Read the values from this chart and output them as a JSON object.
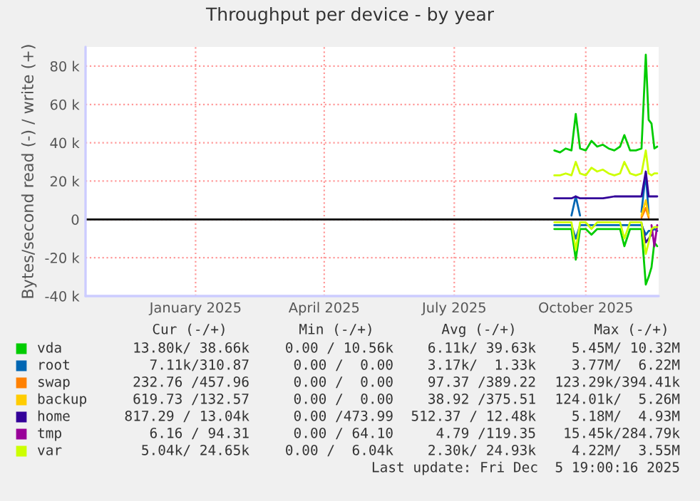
{
  "chart_data": {
    "type": "line",
    "title": "Throughput per device - by year",
    "ylabel": "Bytes/second read (-) / write (+)",
    "x": [
      "2025-09-24",
      "2025-09-28",
      "2025-10-02",
      "2025-10-06",
      "2025-10-09",
      "2025-10-12",
      "2025-10-16",
      "2025-10-20",
      "2025-10-24",
      "2025-10-28",
      "2025-11-01",
      "2025-11-05",
      "2025-11-09",
      "2025-11-12",
      "2025-11-16",
      "2025-11-20",
      "2025-11-24",
      "2025-11-27",
      "2025-11-29",
      "2025-12-01",
      "2025-12-03",
      "2025-12-05"
    ],
    "xlim": [
      "2024-10-31",
      "2025-12-06"
    ],
    "xticks": [
      {
        "value": "2025-01-16",
        "label": "January 2025"
      },
      {
        "value": "2025-04-16",
        "label": "April 2025"
      },
      {
        "value": "2025-07-16",
        "label": "July 2025"
      },
      {
        "value": "2025-10-16",
        "label": "October 2025"
      }
    ],
    "ylim": [
      -40000,
      90000
    ],
    "yticks": [
      {
        "value": -40000,
        "label": "-40 k"
      },
      {
        "value": -20000,
        "label": "-20 k"
      },
      0,
      {
        "value": 20000,
        "label": "20 k"
      },
      {
        "value": 40000,
        "label": "40 k"
      },
      {
        "value": 60000,
        "label": "60 k"
      },
      {
        "value": 80000,
        "label": "80 k"
      }
    ],
    "grid": true,
    "legend": "bottom",
    "line_style": "solid",
    "ref_lines": [
      {
        "axis": "y",
        "value": 0,
        "color": "#000000"
      }
    ],
    "series": [
      {
        "name": "vda",
        "color": "#00cc00",
        "values": [
          36000,
          35000,
          37000,
          36000,
          55000,
          37000,
          36000,
          41000,
          38000,
          39000,
          37000,
          36000,
          38000,
          44000,
          36000,
          36000,
          37000,
          86000,
          52000,
          50000,
          37000,
          38000
        ]
      },
      {
        "color": "#00cc00",
        "values": [
          -5000,
          -5000,
          -5000,
          -5000,
          -21000,
          -5000,
          -5000,
          -8000,
          -5000,
          -5000,
          -5000,
          -5000,
          -5000,
          -14000,
          -5000,
          -5000,
          -5000,
          -34000,
          -30000,
          -25000,
          -12000,
          -14000
        ]
      },
      {
        "name": "root",
        "color": "#0066b3",
        "values": [
          null,
          null,
          null,
          2000,
          12000,
          2000,
          null,
          null,
          null,
          null,
          null,
          null,
          null,
          null,
          null,
          null,
          4000,
          24000,
          3000,
          null,
          null,
          null
        ]
      },
      {
        "color": "#0066b3",
        "values": [
          -3000,
          -3000,
          -3000,
          -3000,
          -10000,
          -3000,
          -3000,
          -3000,
          -3000,
          -3000,
          -3000,
          -3000,
          -3000,
          -3000,
          -3000,
          -3000,
          -3000,
          -8000,
          -6000,
          -6000,
          -5000,
          -6000
        ]
      },
      {
        "name": "swap",
        "color": "#ff8000",
        "values": [
          null,
          null,
          null,
          null,
          null,
          null,
          null,
          null,
          null,
          null,
          null,
          null,
          null,
          null,
          null,
          null,
          1000,
          6000,
          1000,
          null,
          null,
          null
        ]
      },
      {
        "name": "backup",
        "color": "#ffcc00",
        "values": [
          null,
          null,
          null,
          null,
          null,
          null,
          null,
          null,
          null,
          null,
          null,
          null,
          null,
          null,
          null,
          null,
          2000,
          10000,
          2000,
          null,
          null,
          null
        ]
      },
      {
        "name": "home",
        "color": "#330099",
        "values": [
          11000,
          11000,
          11000,
          11000,
          12000,
          11000,
          11000,
          11000,
          11000,
          11000,
          11500,
          12000,
          12000,
          12000,
          12000,
          12000,
          12000,
          25000,
          12000,
          12000,
          12000,
          12000
        ]
      },
      {
        "color": "#330099",
        "values": [
          null,
          null,
          null,
          null,
          null,
          null,
          null,
          null,
          null,
          null,
          null,
          null,
          null,
          null,
          null,
          null,
          -2000,
          -12000,
          -10000,
          -8000,
          null,
          null
        ]
      },
      {
        "name": "tmp",
        "color": "#990099",
        "values": [
          null,
          null,
          null,
          null,
          null,
          null,
          null,
          null,
          null,
          null,
          null,
          null,
          null,
          null,
          null,
          null,
          null,
          null,
          null,
          -3000,
          -14000,
          -3000
        ]
      },
      {
        "name": "var",
        "color": "#ccff00",
        "values": [
          23000,
          23000,
          24000,
          23000,
          30000,
          24000,
          23000,
          27000,
          25000,
          26000,
          24000,
          23000,
          24000,
          30000,
          24000,
          23000,
          24000,
          36000,
          24000,
          23000,
          24000,
          24000
        ]
      },
      {
        "color": "#ccff00",
        "values": [
          -1500,
          -1500,
          -1500,
          -1500,
          -16000,
          -1500,
          -1500,
          -5000,
          -1500,
          -1500,
          -1500,
          -1500,
          -1500,
          -10000,
          -1500,
          -1500,
          -1500,
          -18000,
          -12000,
          -5000,
          -4000,
          -4000
        ]
      }
    ],
    "annotations": [
      "Cur (-/+)",
      "Min (-/+)",
      "Avg (-/+)",
      "Max (-/+)",
      "13.80k/ 38.66k",
      "0.00 / 10.56k",
      "6.11k/ 39.63k",
      "5.45M/ 10.32M",
      "7.11k/310.87",
      "0.00 /  0.00",
      "3.17k/  1.33k",
      "3.77M/  6.22M",
      "232.76 /457.96",
      "0.00 /  0.00",
      "97.37 /389.22",
      "123.29k/394.41k",
      "619.73 /132.57",
      "0.00 /  0.00",
      "38.92 /375.51",
      "124.01k/  5.26M",
      "817.29 / 13.04k",
      "0.00 /473.99",
      "512.37 / 12.48k",
      "5.18M/  4.93M",
      "6.16 / 94.31",
      "0.00 / 64.10",
      "4.79 /119.35",
      "15.45k/284.79k",
      "5.04k/ 24.65k",
      "0.00 /  6.04k",
      "2.30k/ 24.93k",
      "4.22M/  3.55M",
      "Last update: Fri Dec  5 19:00:16 2025"
    ]
  }
}
